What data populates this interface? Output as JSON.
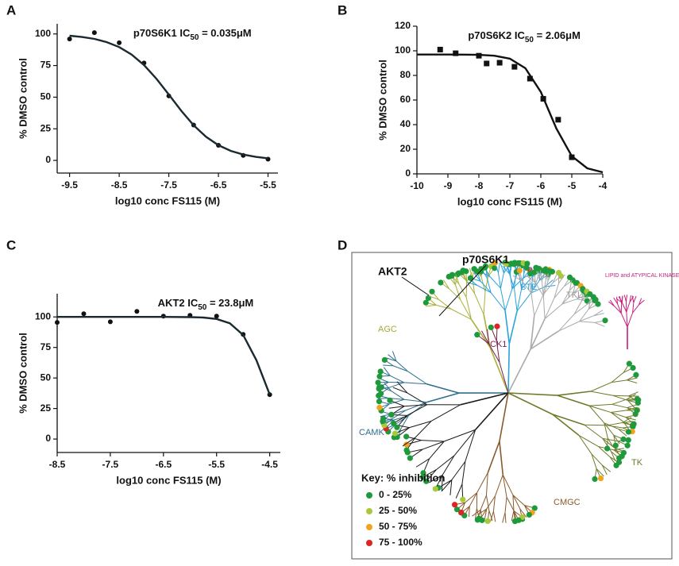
{
  "chart_data": [
    {
      "type": "scatter",
      "label": "A",
      "annotation": {
        "prefix": "p70S6K1 IC",
        "subscript": "50",
        "suffix": " = 0.035μM"
      },
      "xlabel": "log10 conc FS115 (M)",
      "ylabel": "% DMSO control",
      "xlim": [
        -9.75,
        -5.3
      ],
      "ylim": [
        -10,
        108
      ],
      "xticks": [
        -9.5,
        -8.5,
        -7.5,
        -6.5,
        -5.5
      ],
      "yticks": [
        0,
        25,
        50,
        75,
        100
      ],
      "series": [
        {
          "marker": "circle",
          "color": "#111111",
          "x": [
            -9.5,
            -9,
            -8.5,
            -8,
            -7.5,
            -7,
            -6.5,
            -6,
            -5.5
          ],
          "values": [
            96,
            101,
            93,
            77,
            51,
            28,
            12,
            4,
            1
          ]
        },
        {
          "marker": "line",
          "color": "#1a2a30",
          "x": [
            -9.5,
            -9.25,
            -9,
            -8.75,
            -8.5,
            -8.25,
            -8,
            -7.75,
            -7.5,
            -7.25,
            -7,
            -6.75,
            -6.5,
            -6.25,
            -6,
            -5.75,
            -5.5
          ],
          "values": [
            98.6,
            97.6,
            96.1,
            93.5,
            89.6,
            83.7,
            75.4,
            64.6,
            52.1,
            39.3,
            27.8,
            18.7,
            12.0,
            7.5,
            4.6,
            2.8,
            1.7
          ]
        }
      ]
    },
    {
      "type": "scatter",
      "label": "B",
      "annotation": {
        "prefix": "p70S6K2 IC",
        "subscript": "50",
        "suffix": " = 2.06μM"
      },
      "xlabel": "log10 conc FS115 (M)",
      "ylabel": "% DMSO control",
      "xlim": [
        -10,
        -4
      ],
      "ylim": [
        0,
        120
      ],
      "xticks": [
        -10,
        -9,
        -8,
        -7,
        -6,
        -5,
        -4
      ],
      "yticks": [
        0,
        20,
        40,
        60,
        80,
        100,
        120
      ],
      "series": [
        {
          "marker": "square",
          "color": "#111111",
          "x": [
            -9.25,
            -8.75,
            -8,
            -7.75,
            -7.33,
            -6.85,
            -6.35,
            -5.92,
            -5.44,
            -5
          ],
          "values": [
            101,
            98,
            96,
            89.7,
            90.3,
            87,
            77.4,
            61,
            44,
            13.5
          ]
        },
        {
          "marker": "line",
          "color": "#111111",
          "x": [
            -10,
            -9.5,
            -9,
            -8.5,
            -8,
            -7.5,
            -7,
            -6.5,
            -6,
            -5.5,
            -5,
            -4.5,
            -4
          ],
          "values": [
            97.0,
            97.0,
            97.0,
            96.9,
            96.7,
            96.0,
            93.6,
            85.9,
            66.6,
            37.0,
            14.4,
            4.5,
            1.3
          ]
        }
      ]
    },
    {
      "type": "scatter",
      "label": "C",
      "annotation": {
        "prefix": "AKT2 IC",
        "subscript": "50",
        "suffix": " = 23.8μM"
      },
      "xlabel": "log10 conc FS115 (M)",
      "ylabel": "% DMSO control",
      "xlim": [
        -8.5,
        -4.3
      ],
      "ylim": [
        -11,
        119
      ],
      "xticks": [
        -8.5,
        -7.5,
        -6.5,
        -5.5,
        -4.5
      ],
      "yticks": [
        0,
        25,
        50,
        75,
        100
      ],
      "series": [
        {
          "marker": "circle",
          "color": "#111111",
          "x": [
            -8.5,
            -8,
            -7.5,
            -7,
            -6.5,
            -6,
            -5.5,
            -5,
            -4.5
          ],
          "values": [
            95.5,
            102.6,
            96,
            104.5,
            100.6,
            101.3,
            100.6,
            85.7,
            36.4
          ]
        },
        {
          "marker": "line",
          "color": "#1a2a30",
          "x": [
            -8.5,
            -8,
            -7.5,
            -7,
            -6.5,
            -6,
            -5.75,
            -5.5,
            -5.25,
            -5,
            -4.75,
            -4.5
          ],
          "values": [
            100,
            100,
            100,
            100,
            100,
            99.8,
            99.5,
            98.3,
            94.8,
            85.2,
            64.5,
            36.5
          ]
        }
      ]
    }
  ],
  "diagram": {
    "label": "D",
    "callouts": [
      "AKT2",
      "p70S6K1"
    ],
    "groups": [
      "STE",
      "TKL",
      "LIPID and ATYPICAL KINASES",
      "AGC",
      "CK1",
      "CAMK",
      "CMGC",
      "TK"
    ],
    "key": {
      "title": "Key: % inhibition",
      "items": [
        {
          "label": "0 - 25%",
          "color": "#1e9a3c"
        },
        {
          "label": "25 - 50%",
          "color": "#a9c93a"
        },
        {
          "label": "50 - 75%",
          "color": "#f2a31c"
        },
        {
          "label": "75 - 100%",
          "color": "#e02424"
        }
      ]
    }
  }
}
